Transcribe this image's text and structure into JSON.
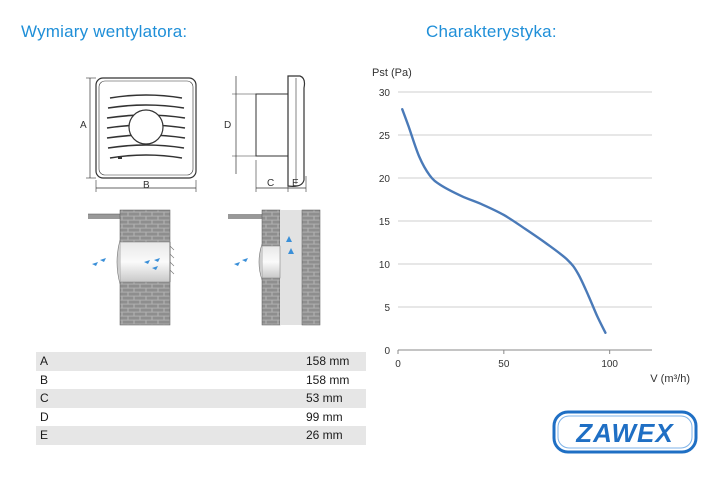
{
  "headings": {
    "dimensions": "Wymiary wentylatora:",
    "characteristic": "Charakterystyka:"
  },
  "drawing_labels": {
    "a": "A",
    "b": "B",
    "c": "C",
    "d": "D",
    "e": "E"
  },
  "dimensions_table": [
    {
      "label": "A",
      "value": "158 mm"
    },
    {
      "label": "B",
      "value": "158 mm"
    },
    {
      "label": "C",
      "value": "53 mm"
    },
    {
      "label": "D",
      "value": "99 mm"
    },
    {
      "label": "E",
      "value": "26 mm"
    }
  ],
  "chart_data": {
    "type": "line",
    "title": "",
    "xlabel": "V (m³/h)",
    "ylabel": "Pst (Pa)",
    "xlim": [
      0,
      120
    ],
    "ylim": [
      0,
      30
    ],
    "x_ticks": [
      0,
      50,
      100
    ],
    "y_ticks": [
      0,
      5,
      10,
      15,
      20,
      25,
      30
    ],
    "grid": "horizontal",
    "line_color": "#4a7ab8",
    "series": [
      {
        "x": [
          2,
          5,
          10,
          15,
          20,
          30,
          40,
          50,
          60,
          70,
          80,
          85,
          90,
          94,
          98
        ],
        "y": [
          28,
          26,
          22.5,
          20.3,
          19.2,
          17.9,
          16.9,
          15.7,
          14.1,
          12.4,
          10.5,
          8.9,
          6.3,
          4.0,
          2.0
        ]
      }
    ]
  },
  "logo": {
    "text": "ZAWEX",
    "color": "#1f6fc4"
  }
}
